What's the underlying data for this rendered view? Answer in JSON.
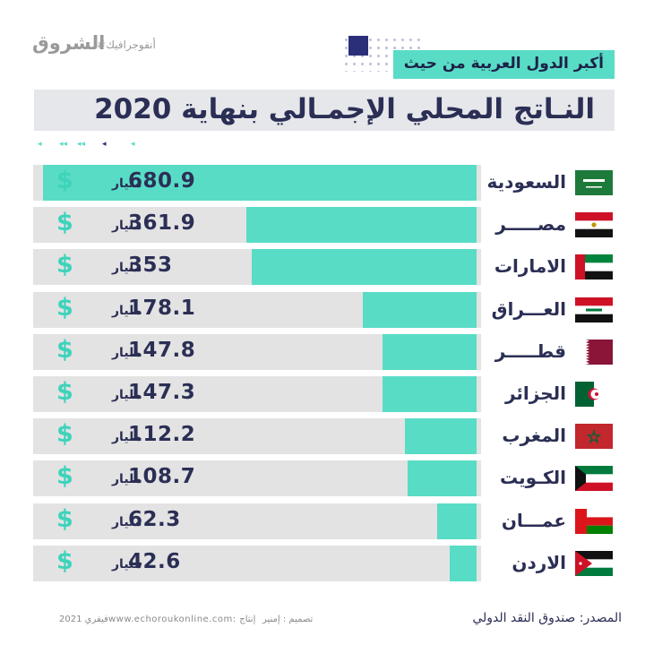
{
  "header": {
    "brand": "الشروق",
    "hashtag": "#أنفوجرافيك",
    "subtitle": "أكبر الدول العربية من حيث",
    "title": "النـاتج المحلي الإجمـالي بنهاية 2020"
  },
  "colors": {
    "bar": "#58dcc6",
    "track": "#e3e3e3",
    "text": "#2b2f55",
    "dollar": "#3ed3bb"
  },
  "chart_data": {
    "type": "bar",
    "orientation": "horizontal",
    "direction": "right-to-left",
    "unit_label": "مليار",
    "currency_symbol": "$",
    "categories": [
      "السعودية",
      "مصـــــر",
      "الامارات",
      "العـــراق",
      "قطـــــر",
      "الجزائر",
      "المغرب",
      "الكـويت",
      "عمـــان",
      "الاردن"
    ],
    "values": [
      680.9,
      361.9,
      353,
      178.1,
      147.8,
      147.3,
      112.2,
      108.7,
      62.3,
      42.6
    ],
    "value_labels": [
      "680.9",
      "361.9",
      "353",
      "178.1",
      "147.8",
      "147.3",
      "112.2",
      "108.7",
      "62.3",
      "42.6"
    ],
    "flags": [
      "saudi-arabia-flag",
      "egypt-flag",
      "uae-flag",
      "iraq-flag",
      "qatar-flag",
      "algeria-flag",
      "morocco-flag",
      "kuwait-flag",
      "oman-flag",
      "jordan-flag"
    ],
    "xlim": [
      0,
      700
    ],
    "grid": true
  },
  "footer": {
    "source": "المصدر:  صندوق النقد الدولي",
    "design": "تصميم : إمنير",
    "site": "www.echoroukonline.com: إنتاج",
    "date": "فيفري 2021"
  }
}
